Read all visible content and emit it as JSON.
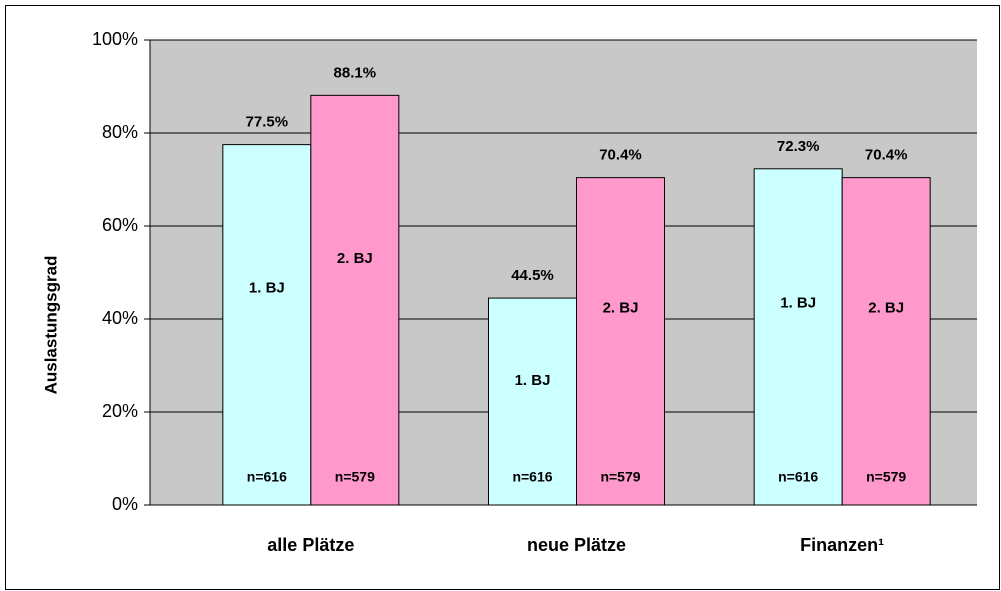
{
  "chart_data": {
    "type": "bar",
    "y_label": "Auslastungsgrad",
    "categories": [
      "alle Plätze",
      "neue Plätze",
      "Finanzen¹"
    ],
    "series": [
      {
        "name": "1. BJ",
        "color": "#ccffff",
        "n_label": "n=616",
        "values": [
          77.5,
          44.5,
          72.3
        ],
        "value_labels": [
          "77.5%",
          "44.5%",
          "72.3%"
        ]
      },
      {
        "name": "2. BJ",
        "color": "#ff99cc",
        "n_label": "n=579",
        "values": [
          88.1,
          70.4,
          70.4
        ],
        "value_labels": [
          "88.1%",
          "70.4%",
          "70.4%"
        ]
      }
    ],
    "ylim": [
      0,
      100
    ],
    "yticks": [
      {
        "value": 0,
        "label": "0%"
      },
      {
        "value": 20,
        "label": "20%"
      },
      {
        "value": 40,
        "label": "40%"
      },
      {
        "value": 60,
        "label": "60%"
      },
      {
        "value": 80,
        "label": "80%"
      },
      {
        "value": 100,
        "label": "100%"
      }
    ],
    "grid": true,
    "background": "#c8c8c8"
  }
}
